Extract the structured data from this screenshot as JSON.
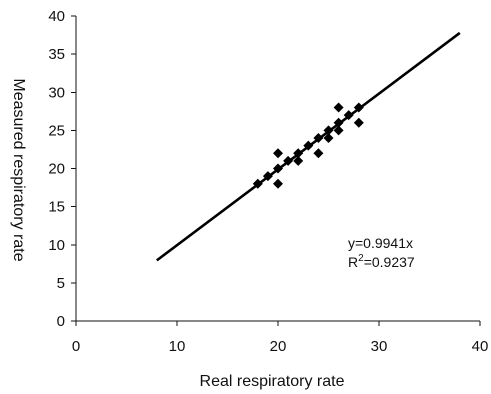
{
  "chart_data": {
    "type": "scatter",
    "title": "",
    "xlabel": "Real respiratory rate",
    "ylabel": "Measured respiratory rate",
    "xlim": [
      0,
      40
    ],
    "ylim": [
      0,
      40
    ],
    "xticks": [
      0,
      10,
      20,
      30,
      40
    ],
    "yticks": [
      0,
      5,
      10,
      15,
      20,
      25,
      30,
      35,
      40
    ],
    "grid": false,
    "legend": "none",
    "marker": "diamond",
    "marker_color": "#000000",
    "points": [
      {
        "x": 18,
        "y": 18
      },
      {
        "x": 19,
        "y": 19
      },
      {
        "x": 20,
        "y": 18
      },
      {
        "x": 20,
        "y": 20
      },
      {
        "x": 20,
        "y": 22
      },
      {
        "x": 21,
        "y": 21
      },
      {
        "x": 22,
        "y": 21
      },
      {
        "x": 22,
        "y": 22
      },
      {
        "x": 23,
        "y": 23
      },
      {
        "x": 24,
        "y": 22
      },
      {
        "x": 24,
        "y": 24
      },
      {
        "x": 25,
        "y": 24
      },
      {
        "x": 25,
        "y": 25
      },
      {
        "x": 26,
        "y": 25
      },
      {
        "x": 26,
        "y": 26
      },
      {
        "x": 26,
        "y": 28
      },
      {
        "x": 27,
        "y": 27
      },
      {
        "x": 28,
        "y": 26
      },
      {
        "x": 28,
        "y": 28
      }
    ],
    "fit_line": {
      "slope": 0.9941,
      "x_range": [
        8,
        38
      ],
      "color": "#000000"
    },
    "annotations": [
      "y=0.9941x",
      "R",
      "2",
      "=0.9237"
    ]
  }
}
